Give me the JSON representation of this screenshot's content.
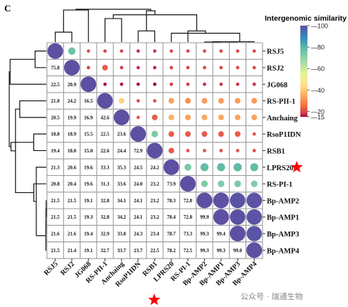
{
  "panel_label": "C",
  "colorbar": {
    "title": "Intergenomic similarity",
    "ticks": [
      100,
      80,
      60,
      40,
      20,
      15
    ],
    "min": 15,
    "max": 100
  },
  "watermark": "公众号 · 瑞通生物",
  "highlight": {
    "genome": "LPRS20",
    "marker": "red-star",
    "color": "#ff0000"
  },
  "chart_data": {
    "type": "heatmap",
    "title": "",
    "genomes": [
      "RSJ5",
      "RSJ2",
      "JG068",
      "RS-PII-1",
      "Anchaing",
      "RsoP1IDN",
      "RSB1",
      "LPRS20",
      "RS-PI-1",
      "Bp-AMP2",
      "Bp-AMP1",
      "Bp-AMP3",
      "Bp-AMP4"
    ],
    "lower_triangle_values": [
      [],
      [
        75.8
      ],
      [
        22.5,
        20.9
      ],
      [
        21.0,
        24.2,
        16.5
      ],
      [
        20.5,
        19.9,
        16.9,
        42.6
      ],
      [
        18.8,
        18.9,
        15.5,
        22.5,
        23.6
      ],
      [
        19.4,
        18.0,
        15.0,
        22.6,
        24.4,
        72.9
      ],
      [
        21.3,
        20.6,
        19.6,
        33.3,
        35.3,
        24.5,
        24.2
      ],
      [
        20.8,
        20.4,
        19.6,
        31.3,
        33.6,
        24.0,
        23.2,
        73.9
      ],
      [
        21.5,
        21.5,
        19.1,
        32.8,
        34.1,
        24.1,
        23.2,
        78.3,
        72.8
      ],
      [
        21.5,
        21.5,
        19.3,
        32.8,
        34.2,
        24.1,
        23.2,
        78.4,
        72.8,
        99.9
      ],
      [
        21.6,
        21.6,
        19.4,
        32.9,
        33.8,
        24.3,
        23.4,
        78.7,
        73.3,
        99.3,
        99.4
      ],
      [
        21.5,
        21.4,
        19.1,
        32.7,
        33.7,
        23.7,
        22.5,
        78.2,
        72.5,
        99.3,
        99.3,
        99.0
      ]
    ],
    "upper_triangle": "circles sized and colored by similarity",
    "dendrogram": "hierarchical clustering shown on top and left"
  }
}
